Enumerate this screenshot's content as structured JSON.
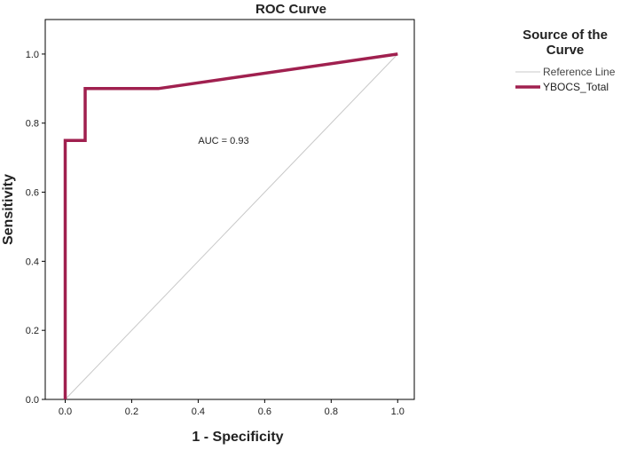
{
  "chart_data": {
    "type": "line",
    "title": "ROC Curve",
    "xlabel": "1 - Specificity",
    "ylabel": "Sensitivity",
    "xlim": [
      -0.06,
      1.05
    ],
    "ylim": [
      0.0,
      1.1
    ],
    "x_ticks": [
      0.0,
      0.2,
      0.4,
      0.6,
      0.8,
      1.0
    ],
    "y_ticks": [
      0.0,
      0.2,
      0.4,
      0.6,
      0.8,
      1.0
    ],
    "x_tick_labels": [
      "0.0",
      "0.2",
      "0.4",
      "0.6",
      "0.8",
      "1.0"
    ],
    "y_tick_labels": [
      "0.0",
      "0.2",
      "0.4",
      "0.6",
      "0.8",
      "1.0"
    ],
    "grid": false,
    "legend": {
      "title": "Source of the Curve",
      "placement": "top-right",
      "entries": [
        "Reference Line",
        "YBOCS_Total"
      ]
    },
    "annotation": {
      "text": "AUC = 0.93",
      "x": 0.4,
      "y": 0.75
    },
    "series": [
      {
        "name": "Reference Line",
        "color": "#c8c8c8",
        "x": [
          0.0,
          1.0
        ],
        "y": [
          0.0,
          1.0
        ]
      },
      {
        "name": "YBOCS_Total",
        "color": "#a0204f",
        "x": [
          0.0,
          0.0,
          0.06,
          0.06,
          0.28,
          1.0
        ],
        "y": [
          0.0,
          0.75,
          0.75,
          0.9,
          0.9,
          1.0
        ]
      }
    ]
  }
}
